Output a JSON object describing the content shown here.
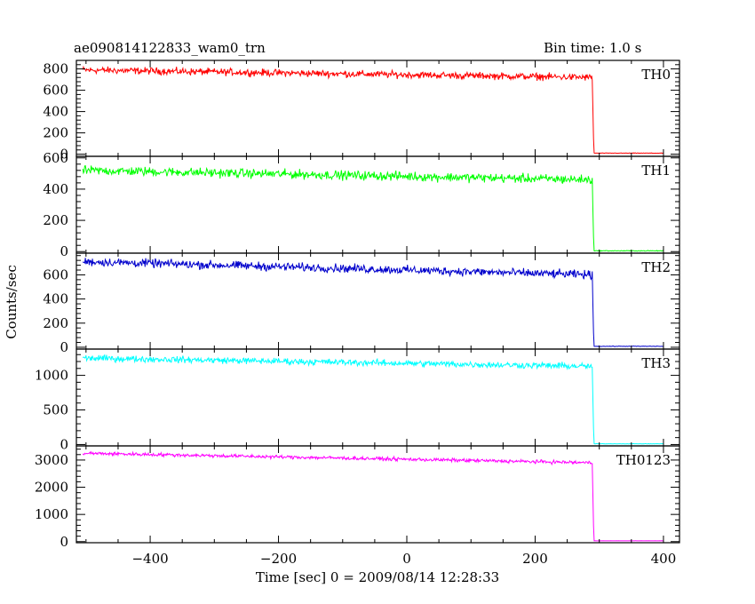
{
  "header": {
    "left_title": "ae090814122833_wam0_trn",
    "right_title": "Bin time: 1.0 s"
  },
  "chart_data": {
    "type": "line",
    "title": "ae090814122833_wam0_trn",
    "subtitle": "Bin time: 1.0 s",
    "xlabel": "Time [sec] 0 = 2009/08/14 12:28:33",
    "ylabel": "Counts/sec",
    "xlim": [
      -515,
      425
    ],
    "x_ticks": [
      -400,
      -200,
      0,
      200,
      400
    ],
    "x_tick_labels": [
      "−400",
      "−200",
      "0",
      "200",
      "400"
    ],
    "drop_time": 290,
    "series_start": -505,
    "series_end": 400,
    "panels": [
      {
        "name": "TH0",
        "color": "#ff0000",
        "ylim": [
          -20,
          880
        ],
        "y_ticks": [
          0,
          200,
          400,
          600,
          800
        ],
        "y_tick_labels": [
          "0",
          "200",
          "400",
          "600",
          "800"
        ],
        "level_start": 790,
        "level_end": 720,
        "noise": 28,
        "post_level": 10
      },
      {
        "name": "TH1",
        "color": "#00ff00",
        "ylim": [
          -10,
          610
        ],
        "y_ticks": [
          0,
          200,
          400,
          600
        ],
        "y_tick_labels": [
          "0",
          "200",
          "400",
          "600"
        ],
        "level_start": 520,
        "level_end": 460,
        "noise": 25,
        "post_level": 5
      },
      {
        "name": "TH2",
        "color": "#0000cc",
        "ylim": [
          -15,
          780
        ],
        "y_ticks": [
          0,
          200,
          400,
          600
        ],
        "y_tick_labels": [
          "0",
          "200",
          "400",
          "600"
        ],
        "level_start": 710,
        "level_end": 600,
        "noise": 30,
        "post_level": 8
      },
      {
        "name": "TH3",
        "color": "#00ffff",
        "ylim": [
          -20,
          1380
        ],
        "y_ticks": [
          0,
          500,
          1000
        ],
        "y_tick_labels": [
          "0",
          "500",
          "1000"
        ],
        "level_start": 1250,
        "level_end": 1130,
        "noise": 40,
        "post_level": 10
      },
      {
        "name": "TH0123",
        "color": "#ff00ff",
        "ylim": [
          -40,
          3520
        ],
        "y_ticks": [
          0,
          1000,
          2000,
          3000
        ],
        "y_tick_labels": [
          "0",
          "1000",
          "2000",
          "3000"
        ],
        "level_start": 3250,
        "level_end": 2900,
        "noise": 55,
        "post_level": 30
      }
    ]
  }
}
